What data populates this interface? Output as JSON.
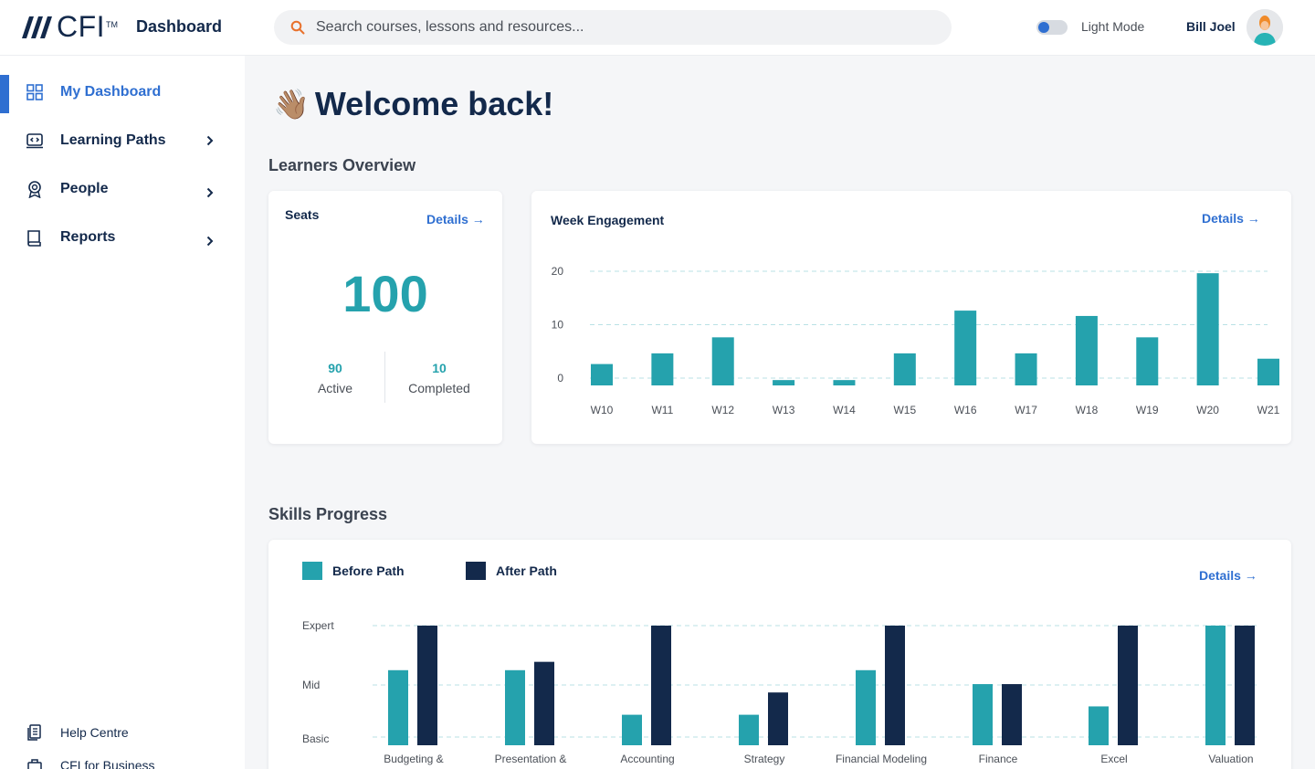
{
  "header": {
    "logo_text": "CFI",
    "logo_tm": "TM",
    "app_title": "Dashboard",
    "search_placeholder": "Search courses, lessons and resources...",
    "mode_label": "Light Mode",
    "user_name": "Bill Joel"
  },
  "sidebar": {
    "items": [
      {
        "label": "My Dashboard",
        "icon": "grid-icon",
        "active": true
      },
      {
        "label": "Learning Paths",
        "icon": "path-icon"
      },
      {
        "label": "People",
        "icon": "badge-icon"
      },
      {
        "label": "Reports",
        "icon": "book-icon"
      }
    ],
    "footer": [
      {
        "label": "Help Centre",
        "icon": "document-icon"
      },
      {
        "label": "CFI for Business",
        "icon": "briefcase-icon"
      }
    ]
  },
  "main": {
    "welcome_emoji": "👋🏽",
    "welcome_text": "Welcome back!",
    "learners_overview_title": "Learners Overview",
    "skills_progress_title": "Skills Progress",
    "seats_card": {
      "title": "Seats",
      "details_label": "Details →",
      "total": "100",
      "active_value": "90",
      "active_label": "Active",
      "completed_value": "10",
      "completed_label": "Completed"
    },
    "engagement_card": {
      "title": "Week Engagement",
      "details_label": "Details →"
    },
    "skills_card": {
      "details_label": "Details →",
      "legend_before": "Before Path",
      "legend_after": "After Path"
    }
  },
  "colors": {
    "accent": "#2f6fd1",
    "teal": "#25a2ad",
    "navy": "#13294b"
  },
  "chart_data": [
    {
      "type": "bar",
      "title": "Week Engagement",
      "categories": [
        "W10",
        "W11",
        "W12",
        "W13",
        "W14",
        "W15",
        "W16",
        "W17",
        "W18",
        "W19",
        "W20",
        "W21"
      ],
      "values": [
        4,
        6,
        9,
        1,
        1,
        6,
        14,
        6,
        13,
        9,
        21,
        5
      ],
      "ylim": [
        0,
        20
      ],
      "yticks": [
        0,
        10,
        20
      ],
      "grid": true,
      "color": "#25a2ad"
    },
    {
      "type": "bar",
      "title": "Skills Progress",
      "categories": [
        "Budgeting &",
        "Presentation &",
        "Accounting",
        "Strategy",
        "Financial Modeling",
        "Finance",
        "Excel",
        "Valuation"
      ],
      "ytick_labels": [
        "Basic",
        "Mid",
        "Expert"
      ],
      "ylim": [
        0,
        2
      ],
      "series": [
        {
          "name": "Before Path",
          "color": "#25a2ad",
          "values": [
            1.2,
            1.2,
            0.4,
            0.4,
            1.2,
            0.95,
            0.55,
            2.0
          ]
        },
        {
          "name": "After Path",
          "color": "#13294b",
          "values": [
            2.0,
            1.35,
            2.0,
            0.8,
            2.0,
            0.95,
            2.0,
            2.0
          ]
        }
      ],
      "grid": true,
      "legend": "top-left"
    }
  ]
}
